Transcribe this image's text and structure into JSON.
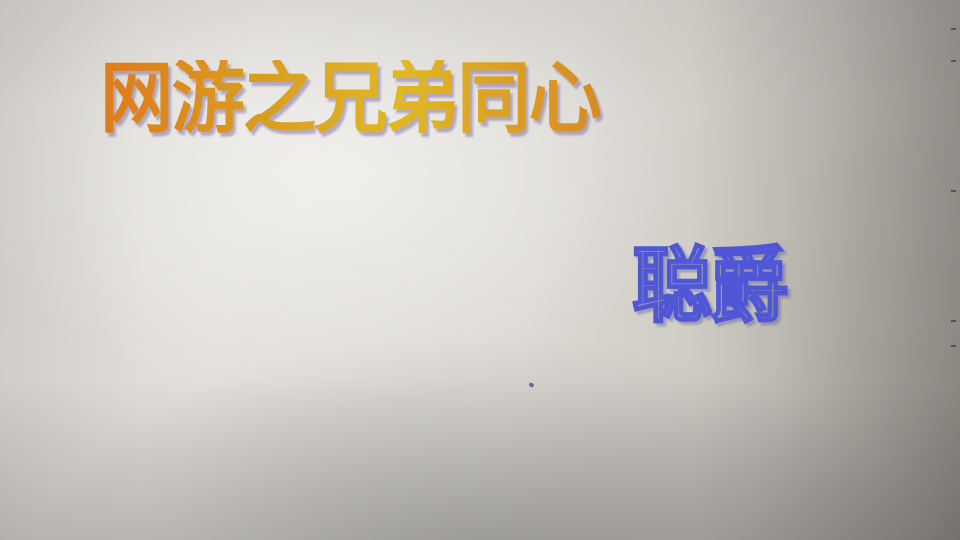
{
  "photo": {
    "title_text": "网游之兄弟同心",
    "author_text": "聪爵"
  },
  "colors": {
    "title_gradient": [
      "#e07a1a",
      "#e0b822",
      "#d88a22"
    ],
    "author_outline": "#4f57d6",
    "background": "#dcd9d3"
  }
}
